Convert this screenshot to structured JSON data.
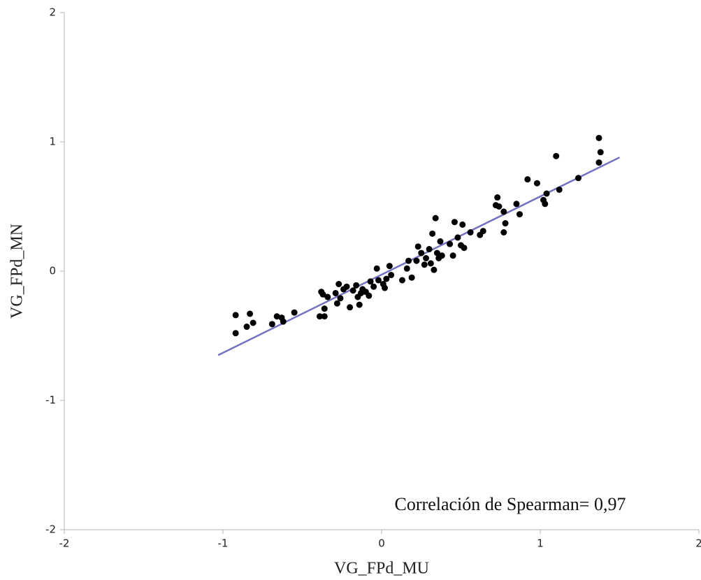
{
  "chart_data": {
    "type": "scatter",
    "x_label": "VG_FPd_MU",
    "y_label": "VG_FPd_MN",
    "annotation": "Correlación de Spearman= 0,97",
    "xlim": [
      -2,
      2
    ],
    "ylim": [
      -2,
      2
    ],
    "xticks": [
      -2,
      -1,
      0,
      1,
      2
    ],
    "yticks": [
      -2,
      -1,
      0,
      1,
      2
    ],
    "point_color": "#000000",
    "trend_line": {
      "x": [
        -1.03,
        1.5
      ],
      "y": [
        -0.65,
        0.88
      ],
      "color": "#7272c0"
    },
    "x": [
      -0.92,
      -0.92,
      -0.85,
      -0.83,
      -0.81,
      -0.69,
      -0.66,
      -0.63,
      -0.62,
      -0.55,
      -0.39,
      -0.38,
      -0.37,
      -0.36,
      -0.36,
      -0.34,
      -0.29,
      -0.28,
      -0.27,
      -0.26,
      -0.24,
      -0.22,
      -0.2,
      -0.18,
      -0.16,
      -0.15,
      -0.14,
      -0.13,
      -0.12,
      -0.1,
      -0.08,
      -0.07,
      -0.05,
      -0.03,
      -0.02,
      0.01,
      0.02,
      0.03,
      0.05,
      0.06,
      0.13,
      0.16,
      0.17,
      0.19,
      0.22,
      0.23,
      0.25,
      0.27,
      0.28,
      0.3,
      0.31,
      0.32,
      0.33,
      0.34,
      0.35,
      0.36,
      0.37,
      0.38,
      0.43,
      0.45,
      0.46,
      0.48,
      0.5,
      0.51,
      0.52,
      0.56,
      0.62,
      0.64,
      0.72,
      0.73,
      0.74,
      0.77,
      0.77,
      0.78,
      0.85,
      0.87,
      0.92,
      0.98,
      1.02,
      1.03,
      1.04,
      1.1,
      1.12,
      1.24,
      1.37,
      1.37,
      1.38
    ],
    "y": [
      -0.34,
      -0.48,
      -0.43,
      -0.33,
      -0.4,
      -0.41,
      -0.35,
      -0.36,
      -0.39,
      -0.32,
      -0.35,
      -0.16,
      -0.18,
      -0.29,
      -0.35,
      -0.2,
      -0.17,
      -0.25,
      -0.1,
      -0.21,
      -0.14,
      -0.12,
      -0.28,
      -0.15,
      -0.11,
      -0.2,
      -0.26,
      -0.17,
      -0.14,
      -0.16,
      -0.19,
      -0.08,
      -0.12,
      0.02,
      -0.07,
      -0.1,
      -0.13,
      -0.06,
      0.04,
      -0.03,
      -0.07,
      0.02,
      0.08,
      -0.05,
      0.08,
      0.19,
      0.14,
      0.05,
      0.1,
      0.17,
      0.06,
      0.29,
      0.01,
      0.41,
      0.14,
      0.1,
      0.23,
      0.12,
      0.21,
      0.12,
      0.38,
      0.26,
      0.2,
      0.36,
      0.18,
      0.3,
      0.28,
      0.31,
      0.51,
      0.57,
      0.5,
      0.46,
      0.3,
      0.37,
      0.52,
      0.44,
      0.71,
      0.68,
      0.55,
      0.52,
      0.6,
      0.89,
      0.63,
      0.72,
      1.03,
      0.84,
      0.92
    ]
  }
}
